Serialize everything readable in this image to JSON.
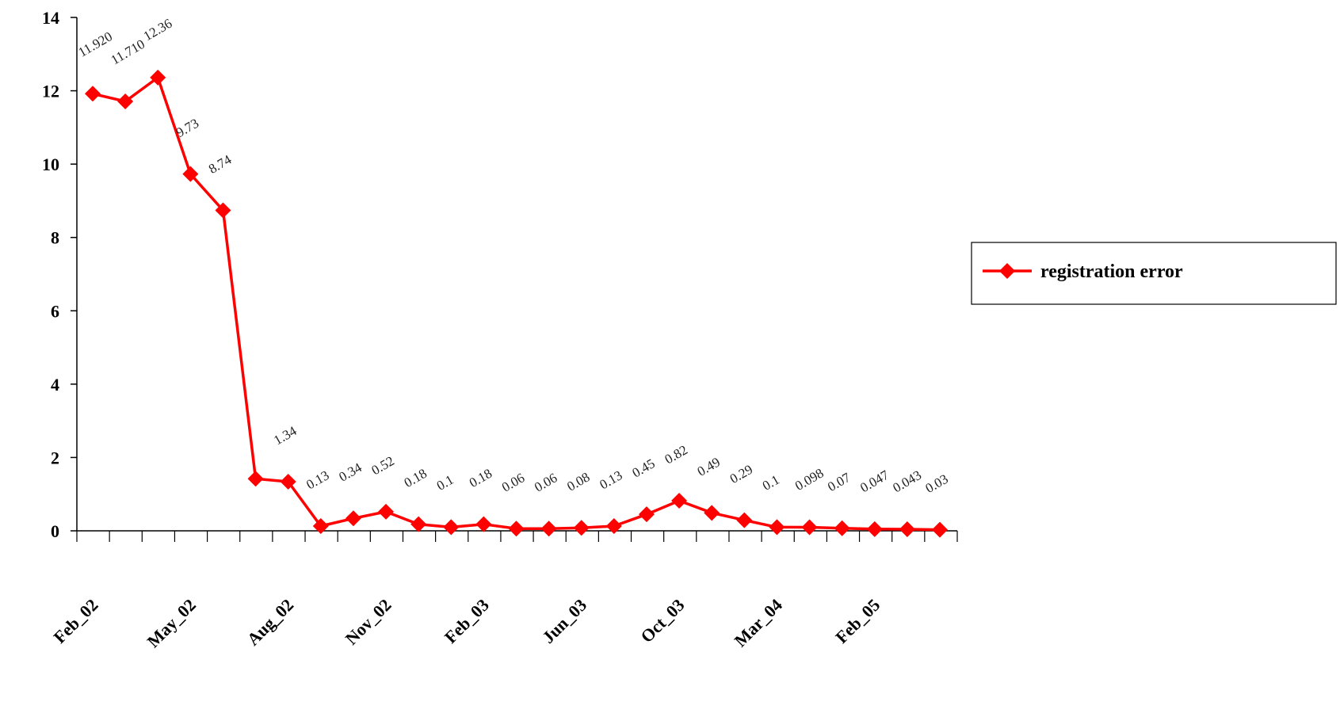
{
  "chart_data": {
    "type": "line",
    "title": "",
    "xlabel": "",
    "ylabel": "",
    "ylim": [
      0,
      14
    ],
    "yticks": [
      "0",
      "2",
      "4",
      "6",
      "8",
      "10",
      "12",
      "14"
    ],
    "x_tick_labels": [
      "Feb_02",
      "May_02",
      "Aug_02",
      "Nov_02",
      "Feb_03",
      "Jun_03",
      "Oct_03",
      "Mar_04",
      "Feb_05"
    ],
    "x_tick_label_positions": [
      0,
      3,
      6,
      9,
      12,
      15,
      18,
      21,
      24
    ],
    "legend": "right",
    "grid": false,
    "color": "#ff0000",
    "series": [
      {
        "name": "registration error",
        "values": [
          11.92,
          11.71,
          12.36,
          9.73,
          8.74,
          1.42,
          1.34,
          0.13,
          0.34,
          0.52,
          0.18,
          0.1,
          0.18,
          0.06,
          0.06,
          0.08,
          0.13,
          0.45,
          0.82,
          0.49,
          0.29,
          0.1,
          0.098,
          0.07,
          0.047,
          0.043,
          0.03
        ],
        "data_labels": [
          "11.920",
          "11.710",
          "12.36",
          "9.73",
          "8.74",
          "",
          "1.34",
          "0.13",
          "0.34",
          "0.52",
          "0.18",
          "0.1",
          "0.18",
          "0.06",
          "0.06",
          "0.08",
          "0.13",
          "0.45",
          "0.82",
          "0.49",
          "0.29",
          "0.1",
          "0.098",
          "0.07",
          "0.047",
          "0.043",
          "0.03"
        ]
      }
    ]
  }
}
